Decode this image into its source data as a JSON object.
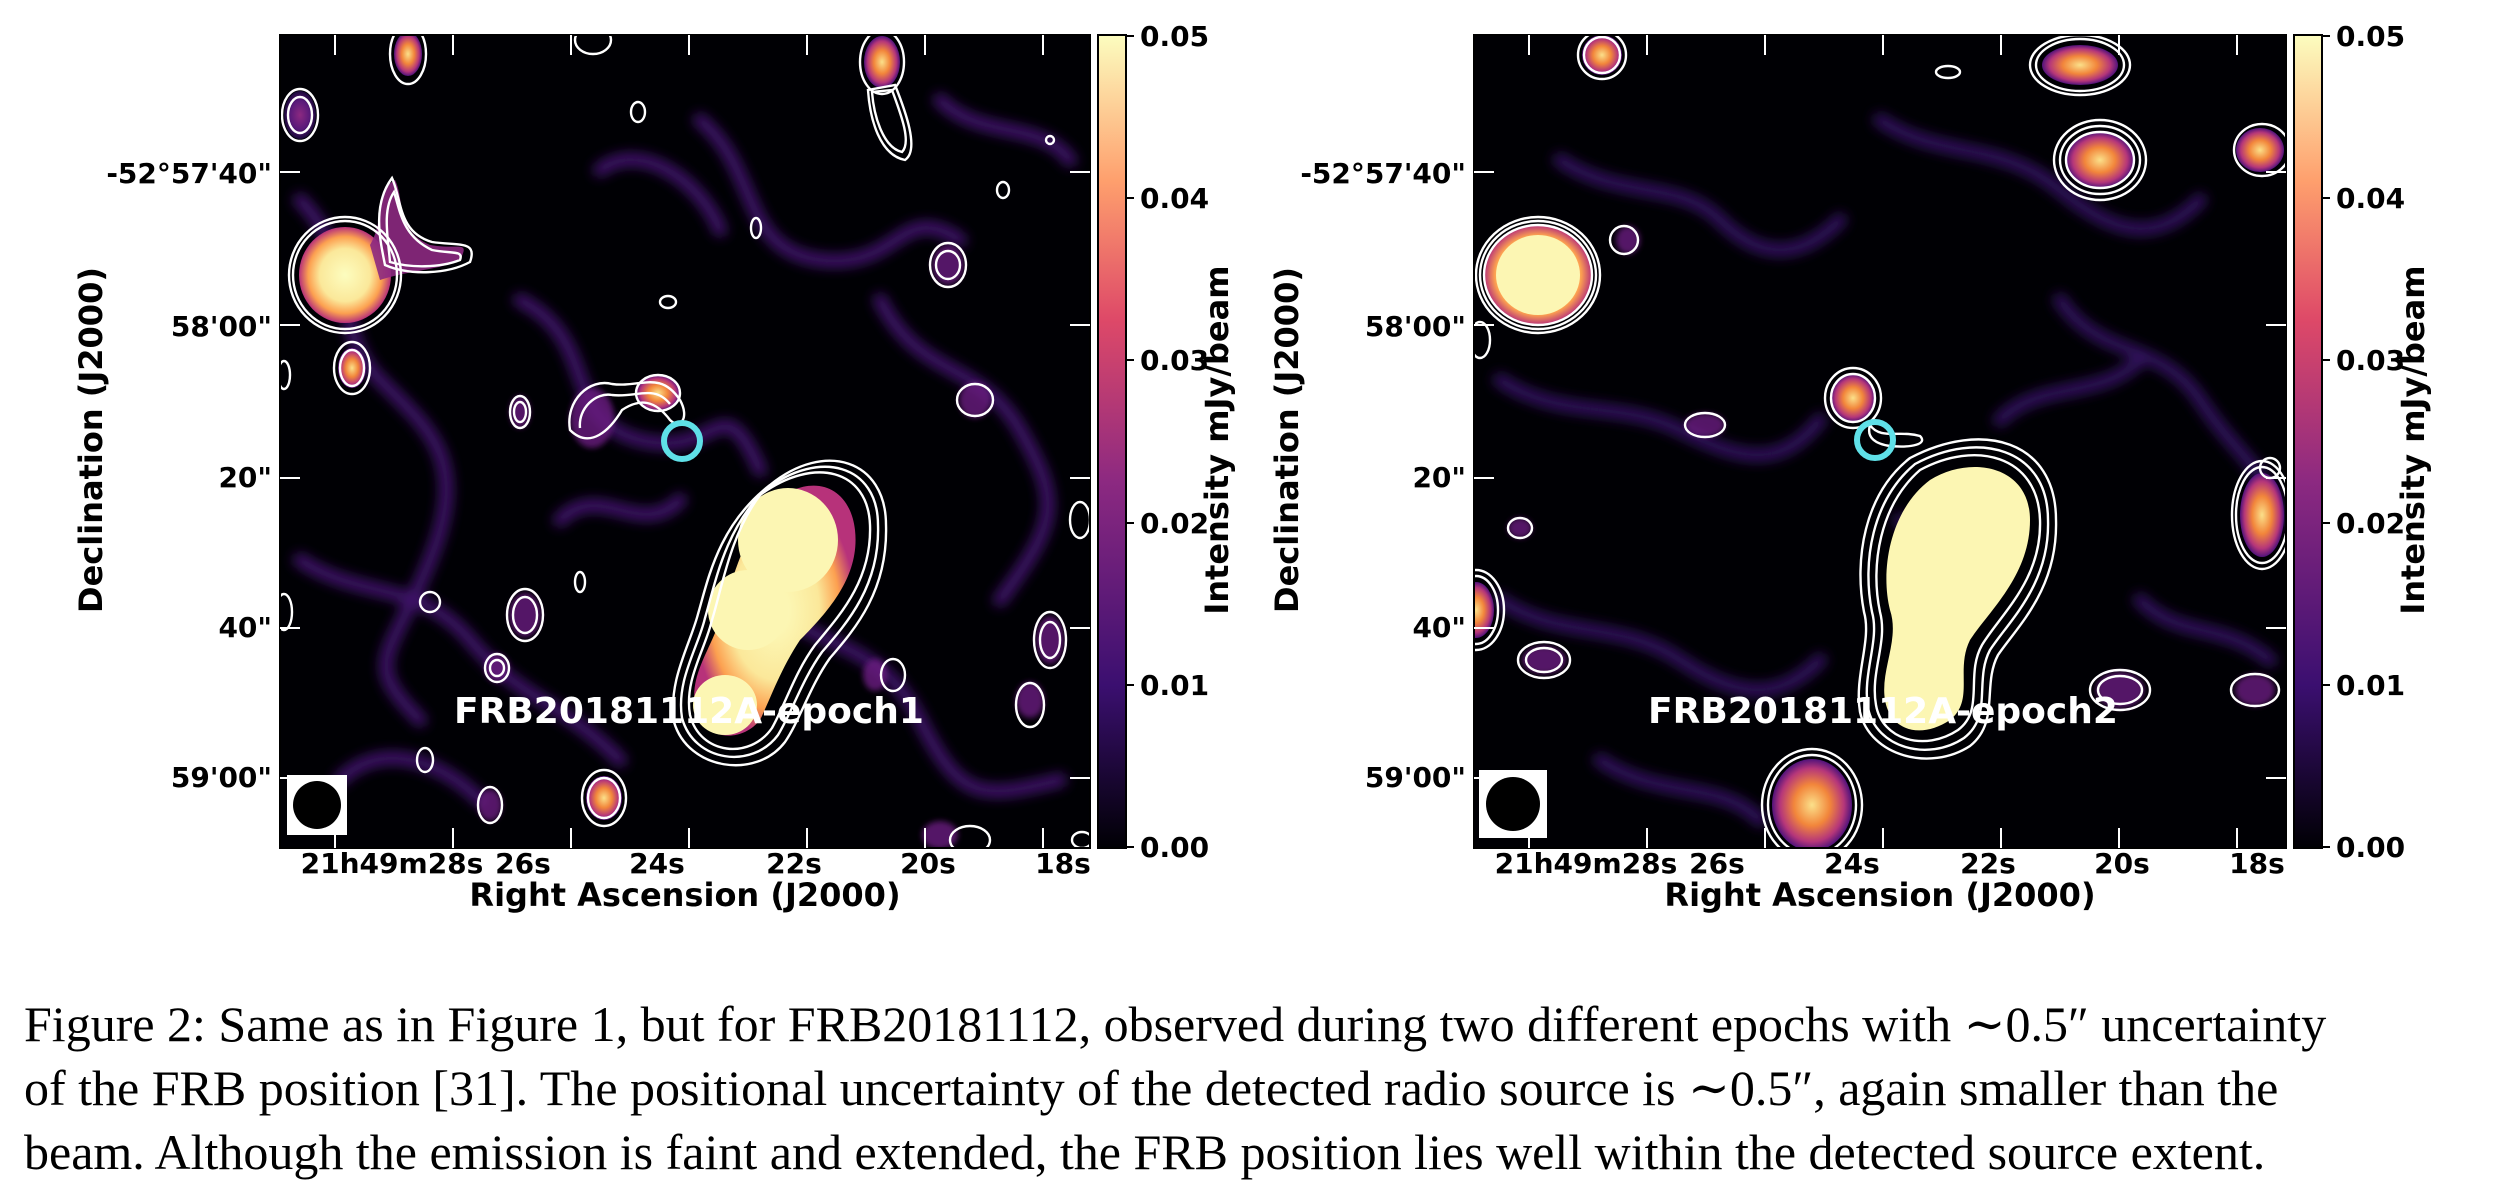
{
  "panels": [
    {
      "id": "epoch1",
      "label": "FRB20181112A-epoch1",
      "xlabel": "Right Ascension (J2000)",
      "ylabel": "Declination (J2000)",
      "x_ticks": [
        "21h49m28s",
        "26s",
        "24s",
        "22s",
        "20s",
        "18s"
      ],
      "y_ticks": [
        "-52°57'40\"",
        "58'00\"",
        "20\"",
        "40\"",
        "59'00\""
      ],
      "colorbar": {
        "label": "Intensity mJy/beam",
        "ticks": [
          "0.05",
          "0.04",
          "0.03",
          "0.02",
          "0.01",
          "0.00"
        ]
      }
    },
    {
      "id": "epoch2",
      "label": "FRB20181112A-epoch2",
      "xlabel": "Right Ascension (J2000)",
      "ylabel": "Declination (J2000)",
      "x_ticks": [
        "21h49m28s",
        "26s",
        "24s",
        "22s",
        "20s",
        "18s"
      ],
      "y_ticks": [
        "-52°57'40\"",
        "58'00\"",
        "20\"",
        "40\"",
        "59'00\""
      ],
      "colorbar": {
        "label": "Intensity mJy/beam",
        "ticks": [
          "0.05",
          "0.04",
          "0.03",
          "0.02",
          "0.01",
          "0.00"
        ]
      }
    }
  ],
  "colors": {
    "background": "#000004",
    "colormap": [
      "#000004",
      "#3b0f70",
      "#8c2981",
      "#de4968",
      "#fe9f6d",
      "#fcfdbf"
    ],
    "frb_circle": "#5fe0e8",
    "contour": "#ffffff"
  },
  "caption": {
    "line1": "Figure 2: Same as in Figure 1, but for FRB20181112, observed during two different epochs with ∼0.5″ uncertainty",
    "line2": "of the FRB position [31]. The positional uncertainty of the detected radio source is ∼0.5″, again smaller than the",
    "line3": "beam. Although the emission is faint and extended, the FRB position lies well within the detected source extent."
  }
}
